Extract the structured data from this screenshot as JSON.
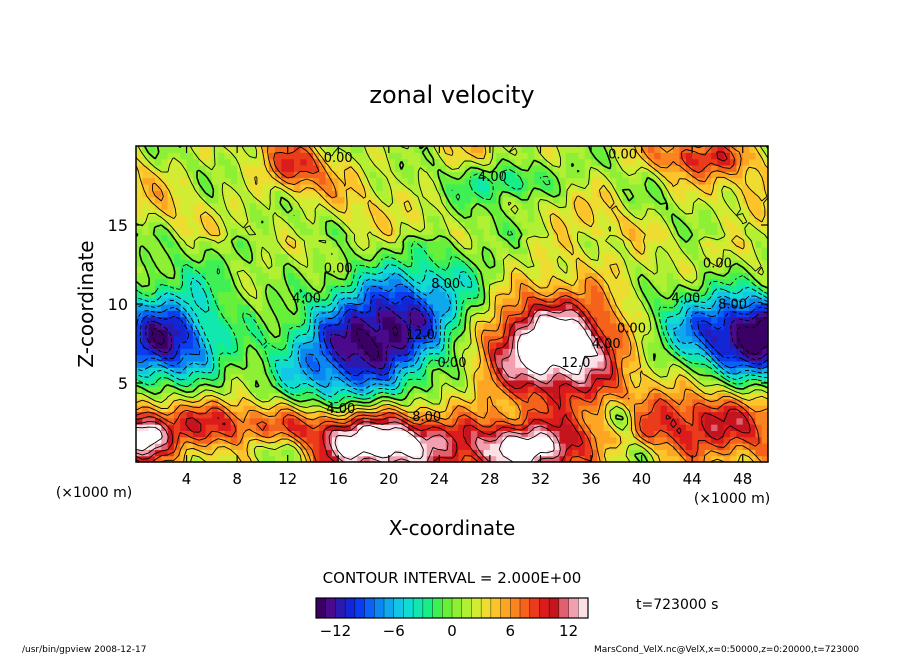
{
  "chart_data": {
    "type": "heatmap",
    "title": "zonal velocity",
    "xlabel": "X-coordinate",
    "ylabel": "Z-coordinate",
    "x_unit_label": "(×1000 m)",
    "y_unit_label": "(×1000 m)",
    "xlim": [
      0,
      50
    ],
    "ylim": [
      0,
      20
    ],
    "x_ticks": [
      4,
      8,
      12,
      16,
      20,
      24,
      28,
      32,
      36,
      40,
      44,
      48
    ],
    "y_ticks": [
      5,
      10,
      15
    ],
    "contour_interval_text": "CONTOUR INTERVAL = 2.000E+00",
    "contour_labels": [
      {
        "text": "0.00",
        "x": 16.0,
        "z": 19.0
      },
      {
        "text": "0.00",
        "x": 38.5,
        "z": 19.2
      },
      {
        "text": "4.00",
        "x": 28.2,
        "z": 17.8
      },
      {
        "text": "0.00",
        "x": 16.0,
        "z": 12.0
      },
      {
        "text": "0.00",
        "x": 46.0,
        "z": 12.3
      },
      {
        "text": "4.00",
        "x": 13.5,
        "z": 10.1
      },
      {
        "text": "8.00",
        "x": 24.5,
        "z": 11.0
      },
      {
        "text": "4.00",
        "x": 43.5,
        "z": 10.1
      },
      {
        "text": "8.00",
        "x": 47.2,
        "z": 9.7
      },
      {
        "text": "12.0",
        "x": 22.5,
        "z": 7.8
      },
      {
        "text": "0.00",
        "x": 25.0,
        "z": 6.0
      },
      {
        "text": "12.0",
        "x": 34.8,
        "z": 6.0
      },
      {
        "text": "4.00",
        "x": 37.2,
        "z": 7.2
      },
      {
        "text": "0.00",
        "x": 39.2,
        "z": 8.2
      },
      {
        "text": "4.00",
        "x": 16.2,
        "z": 3.1
      },
      {
        "text": "8.00",
        "x": 23.0,
        "z": 2.6
      }
    ],
    "colorbar": {
      "min": -14,
      "max": 14,
      "levels": 28,
      "ticks": [
        -12,
        -6,
        0,
        6,
        12
      ],
      "colors": [
        "#3b0066",
        "#4b0a8c",
        "#2a1ab0",
        "#1226d6",
        "#0b3cf0",
        "#0b60f5",
        "#0c86f3",
        "#10a8ec",
        "#13c6e6",
        "#12dcd2",
        "#10e8b0",
        "#18ee86",
        "#3ef056",
        "#66f03a",
        "#8ef034",
        "#b2f034",
        "#d2ec34",
        "#eedc30",
        "#fcc42a",
        "#fca624",
        "#fa8420",
        "#f4621c",
        "#ea3c1a",
        "#dc1c1c",
        "#c4141e",
        "#e06070",
        "#f2a0b0",
        "#fce0e6"
      ]
    },
    "fields": [
      {
        "type": "jet_negative",
        "x": 2.0,
        "z": 7.7,
        "sx": 3.2,
        "sz": 1.9,
        "amp": -15
      },
      {
        "type": "jet_negative",
        "x": 50.0,
        "z": 7.7,
        "sx": 3.2,
        "sz": 1.9,
        "amp": -15
      },
      {
        "type": "jet_negative",
        "x": 19.0,
        "z": 8.0,
        "sx": 5.2,
        "sz": 2.6,
        "amp": -17,
        "tilt": 0.35
      },
      {
        "type": "jet_negative",
        "x": 45.0,
        "z": 8.6,
        "sx": 3.8,
        "sz": 1.8,
        "amp": -8
      },
      {
        "type": "jet_negative",
        "x": 29.8,
        "z": 17.8,
        "sx": 2.6,
        "sz": 0.9,
        "amp": -7
      },
      {
        "type": "jet_negative",
        "x": 5.0,
        "z": 12.0,
        "sx": 4.0,
        "sz": 2.0,
        "amp": -3
      },
      {
        "type": "jet_positive",
        "x": 33.0,
        "z": 7.3,
        "sx": 3.8,
        "sz": 2.2,
        "amp": 16
      },
      {
        "type": "jet_positive",
        "x": 19.0,
        "z": 1.2,
        "sx": 4.6,
        "sz": 1.4,
        "amp": 15
      },
      {
        "type": "jet_positive",
        "x": 7.0,
        "z": 2.4,
        "sx": 6.0,
        "sz": 1.2,
        "amp": 7
      },
      {
        "type": "jet_positive",
        "x": 31.0,
        "z": 0.8,
        "sx": 3.2,
        "sz": 1.2,
        "amp": 13
      },
      {
        "type": "jet_positive",
        "x": 45.0,
        "z": 2.4,
        "sx": 6.0,
        "sz": 1.6,
        "amp": 8
      },
      {
        "type": "jet_positive",
        "x": 0.5,
        "z": 1.5,
        "sx": 1.5,
        "sz": 1.0,
        "amp": 12
      },
      {
        "type": "jet_positive",
        "x": 12.5,
        "z": 18.6,
        "sx": 1.6,
        "sz": 1.0,
        "amp": 6
      },
      {
        "type": "jet_positive",
        "x": 45.0,
        "z": 19.3,
        "sx": 3.0,
        "sz": 0.8,
        "amp": 6
      },
      {
        "type": "jet_negative",
        "x": 38.5,
        "z": 2.8,
        "sx": 1.0,
        "sz": 0.8,
        "amp": -7
      },
      {
        "type": "jet_negative",
        "x": 11.5,
        "z": 0.8,
        "sx": 2.5,
        "sz": 0.8,
        "amp": -6
      },
      {
        "type": "jet_negative",
        "x": 39.0,
        "z": 0.6,
        "sx": 2.0,
        "sz": 0.7,
        "amp": -4
      }
    ],
    "time_label": "t=723000 s"
  },
  "footer": {
    "left": "/usr/bin/gpview  2008-12-17",
    "right": "MarsCond_VelX.nc@VelX,x=0:50000,z=0:20000,t=723000"
  }
}
